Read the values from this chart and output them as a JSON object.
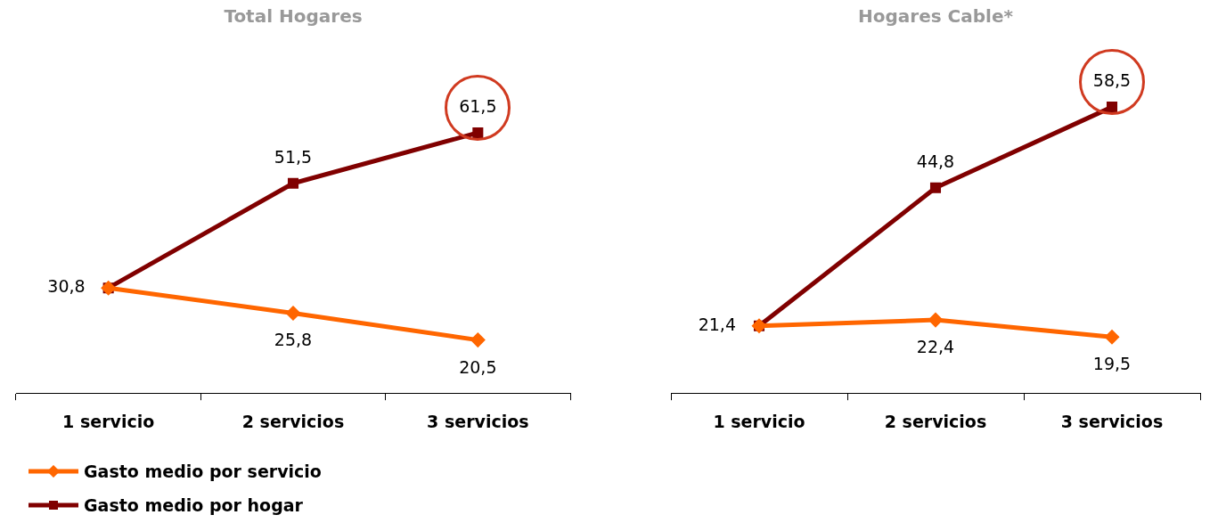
{
  "chart_data": [
    {
      "type": "line",
      "title": "Total Hogares",
      "categories": [
        "1 servicio",
        "2 servicios",
        "3 servicios"
      ],
      "series": [
        {
          "name": "Gasto medio por servicio",
          "color": "#ff6600",
          "marker": "diamond",
          "values": [
            30.8,
            25.8,
            20.5
          ],
          "value_labels": [
            null,
            "25,8",
            "20,5"
          ]
        },
        {
          "name": "Gasto medio por hogar",
          "color": "#800000",
          "marker": "square",
          "values": [
            30.8,
            51.5,
            61.5
          ],
          "value_labels": [
            "30,8",
            "51,5",
            "61,5"
          ]
        }
      ],
      "tick_labels": "x",
      "grid": false,
      "legend": "bottom left"
    },
    {
      "type": "line",
      "title": "Hogares Cable*",
      "categories": [
        "1 servicio",
        "2 servicios",
        "3 servicios"
      ],
      "series": [
        {
          "color": "#ff6600",
          "marker": "diamond",
          "values": [
            21.4,
            22.4,
            19.5
          ],
          "value_labels": [
            null,
            "22,4",
            "19,5"
          ]
        },
        {
          "color": "#800000",
          "marker": "square",
          "values": [
            21.4,
            44.8,
            58.5
          ],
          "value_labels": [
            "21,4",
            "44,8",
            "58,5"
          ]
        }
      ],
      "tick_labels": "x",
      "grid": false,
      "legend": false
    }
  ]
}
